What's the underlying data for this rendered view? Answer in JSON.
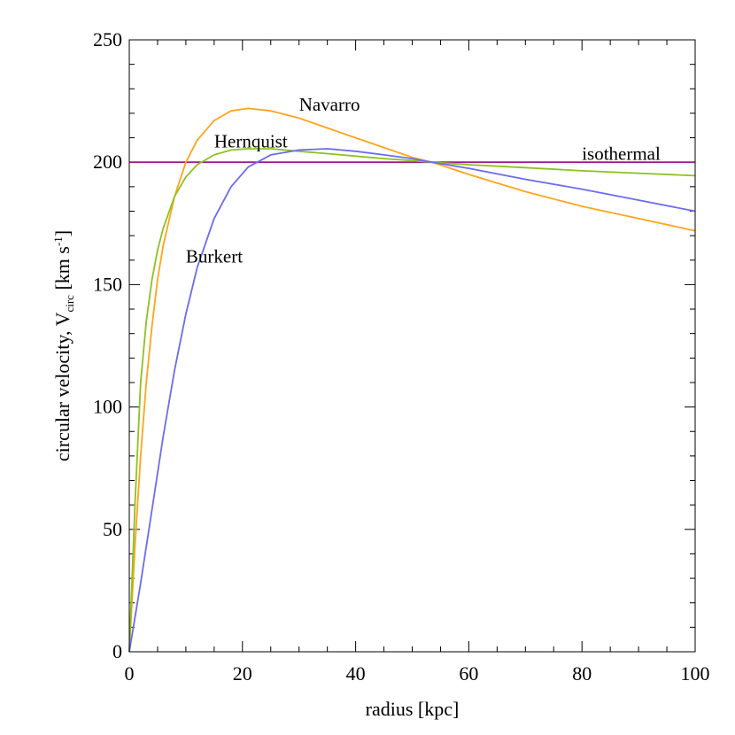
{
  "chart_data": {
    "type": "line",
    "xlabel": "radius [kpc]",
    "ylabel": {
      "prefix": "circular velocity, V",
      "sub": "circ",
      "mid": " [km s",
      "sup": "-1",
      "suffix": "]"
    },
    "xlim": [
      0,
      100
    ],
    "ylim": [
      0,
      250
    ],
    "xticks": [
      0,
      20,
      40,
      60,
      80,
      100
    ],
    "yticks": [
      0,
      50,
      100,
      150,
      200,
      250
    ],
    "x_minor_step": 5,
    "y_minor_step": 10,
    "grid": false,
    "series": [
      {
        "name": "isothermal",
        "color": "#9b1d8f",
        "x": [
          0,
          100
        ],
        "y": [
          200,
          200
        ]
      },
      {
        "name": "Navarro",
        "color": "#ffa41c",
        "x": [
          0,
          1,
          2,
          3,
          4,
          5,
          6,
          8,
          10,
          12,
          15,
          18,
          21,
          25,
          30,
          35,
          40,
          45,
          50,
          53.5,
          60,
          70,
          80,
          90,
          100
        ],
        "y": [
          0,
          43,
          80,
          110,
          133,
          152,
          166,
          186,
          200,
          209,
          217,
          221,
          222,
          221,
          218,
          214,
          210,
          206,
          202,
          200,
          195,
          188,
          182,
          177,
          172
        ]
      },
      {
        "name": "Hernquist",
        "color": "#8cc220",
        "x": [
          0,
          1,
          2,
          3,
          4,
          5,
          6,
          8,
          10,
          12,
          15,
          18,
          21,
          25,
          30,
          35,
          40,
          45,
          50,
          53.5,
          60,
          70,
          80,
          90,
          100
        ],
        "y": [
          0,
          60,
          110,
          135,
          152,
          164,
          173,
          186,
          194,
          199,
          203,
          205,
          205.5,
          205.5,
          204.5,
          203.5,
          202.5,
          201.5,
          200.7,
          200,
          199,
          197.8,
          196.5,
          195.5,
          194.5
        ]
      },
      {
        "name": "Burkert",
        "color": "#6b6bf0",
        "x": [
          0,
          2,
          4,
          6,
          8,
          10,
          12,
          15,
          18,
          21,
          25,
          30,
          35,
          40,
          45,
          50,
          53.5,
          60,
          70,
          80,
          90,
          100
        ],
        "y": [
          0,
          28,
          58,
          88,
          115,
          138,
          157,
          177,
          190,
          198,
          203,
          205,
          205.5,
          204.5,
          203,
          201.5,
          200,
          197.5,
          193,
          189,
          184.5,
          180
        ]
      }
    ],
    "annotations": [
      {
        "text": "Navarro",
        "x": 30,
        "y": 221
      },
      {
        "text": "Hernquist",
        "x": 15,
        "y": 206
      },
      {
        "text": "isothermal",
        "x": 80,
        "y": 201
      },
      {
        "text": "Burkert",
        "x": 10,
        "y": 159
      }
    ]
  }
}
